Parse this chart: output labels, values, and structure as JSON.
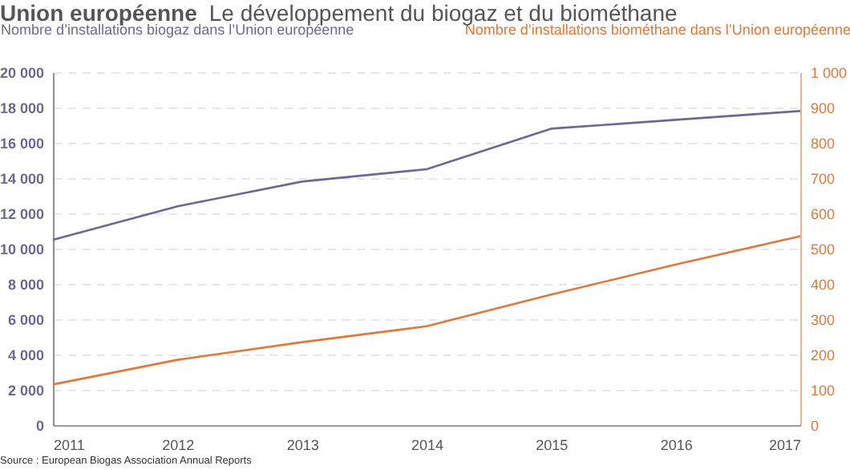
{
  "chart_data": {
    "type": "line",
    "title": "Union européenne",
    "subtitle": "Le développement du biogaz et du biométhane",
    "ylabel": "Nombre d’installations biogaz dans l’Union européenne",
    "y2label": "Nombre d’installations biométhane dans l’Union européenne",
    "x": [
      2011,
      2012,
      2013,
      2014,
      2015,
      2016,
      2017
    ],
    "xlim": [
      2011,
      2017
    ],
    "xticks": [
      2011,
      2012,
      2013,
      2014,
      2015,
      2016,
      2017
    ],
    "series": [
      {
        "color": "#6b6991",
        "values": [
          10500,
          12400,
          13800,
          14500,
          16800,
          17300,
          17800
        ]
      },
      {
        "color": "#e0783a",
        "axis": "y2",
        "values": [
          115,
          185,
          235,
          280,
          370,
          455,
          535
        ]
      }
    ],
    "ylim": [
      0,
      20000
    ],
    "yticks": [
      0,
      {
        "value": 2000,
        "label": "2 000"
      },
      {
        "value": 4000,
        "label": "4 000"
      },
      {
        "value": 6000,
        "label": "6 000"
      },
      {
        "value": 8000,
        "label": "8 000"
      },
      {
        "value": 10000,
        "label": "10 000"
      },
      {
        "value": 12000,
        "label": "12 000"
      },
      {
        "value": 14000,
        "label": "14 000"
      },
      {
        "value": 16000,
        "label": "16 000"
      },
      {
        "value": 18000,
        "label": "18 000"
      },
      {
        "value": 20000,
        "label": "20 000"
      }
    ],
    "y2lim": [
      0,
      1000
    ],
    "y2ticks": [
      0,
      100,
      200,
      300,
      400,
      500,
      600,
      700,
      800,
      900,
      {
        "value": 1000,
        "label": "1 000"
      }
    ],
    "grid": "y",
    "line_style": "solid",
    "marker": "none",
    "annotations": [
      "Source : European Biogas Association Annual Reports"
    ]
  }
}
